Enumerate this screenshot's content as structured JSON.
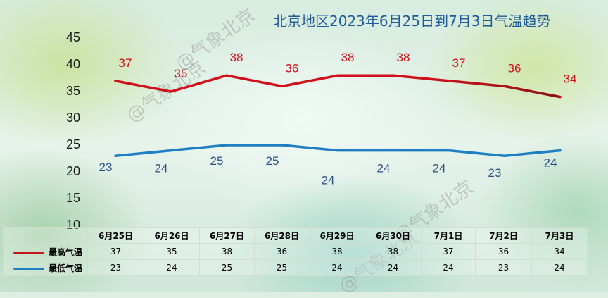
{
  "title": "北京地区2023年6月25日到7月3日气温趋势",
  "watermark": "@气象北京",
  "colors": {
    "high": "#d0101a",
    "high_end": "#8b0f14",
    "low": "#1e7fc4",
    "low_text": "#2b4f86",
    "title": "#1f5a9a"
  },
  "chart_data": {
    "type": "line",
    "title": "北京地区2023年6月25日到7月3日气温趋势",
    "categories": [
      "6月25日",
      "6月26日",
      "6月27日",
      "6月28日",
      "6月29日",
      "6月30日",
      "7月1日",
      "7月2日",
      "7月3日"
    ],
    "series": [
      {
        "name": "最高气温",
        "values": [
          37,
          35,
          38,
          36,
          38,
          38,
          37,
          36,
          34
        ]
      },
      {
        "name": "最低气温",
        "values": [
          23,
          24,
          25,
          25,
          24,
          24,
          24,
          23,
          24
        ]
      }
    ],
    "y_ticks": [
      10,
      15,
      20,
      25,
      30,
      35,
      40,
      45
    ],
    "ylim": [
      10,
      45
    ],
    "grid": false,
    "legend": "data table"
  }
}
